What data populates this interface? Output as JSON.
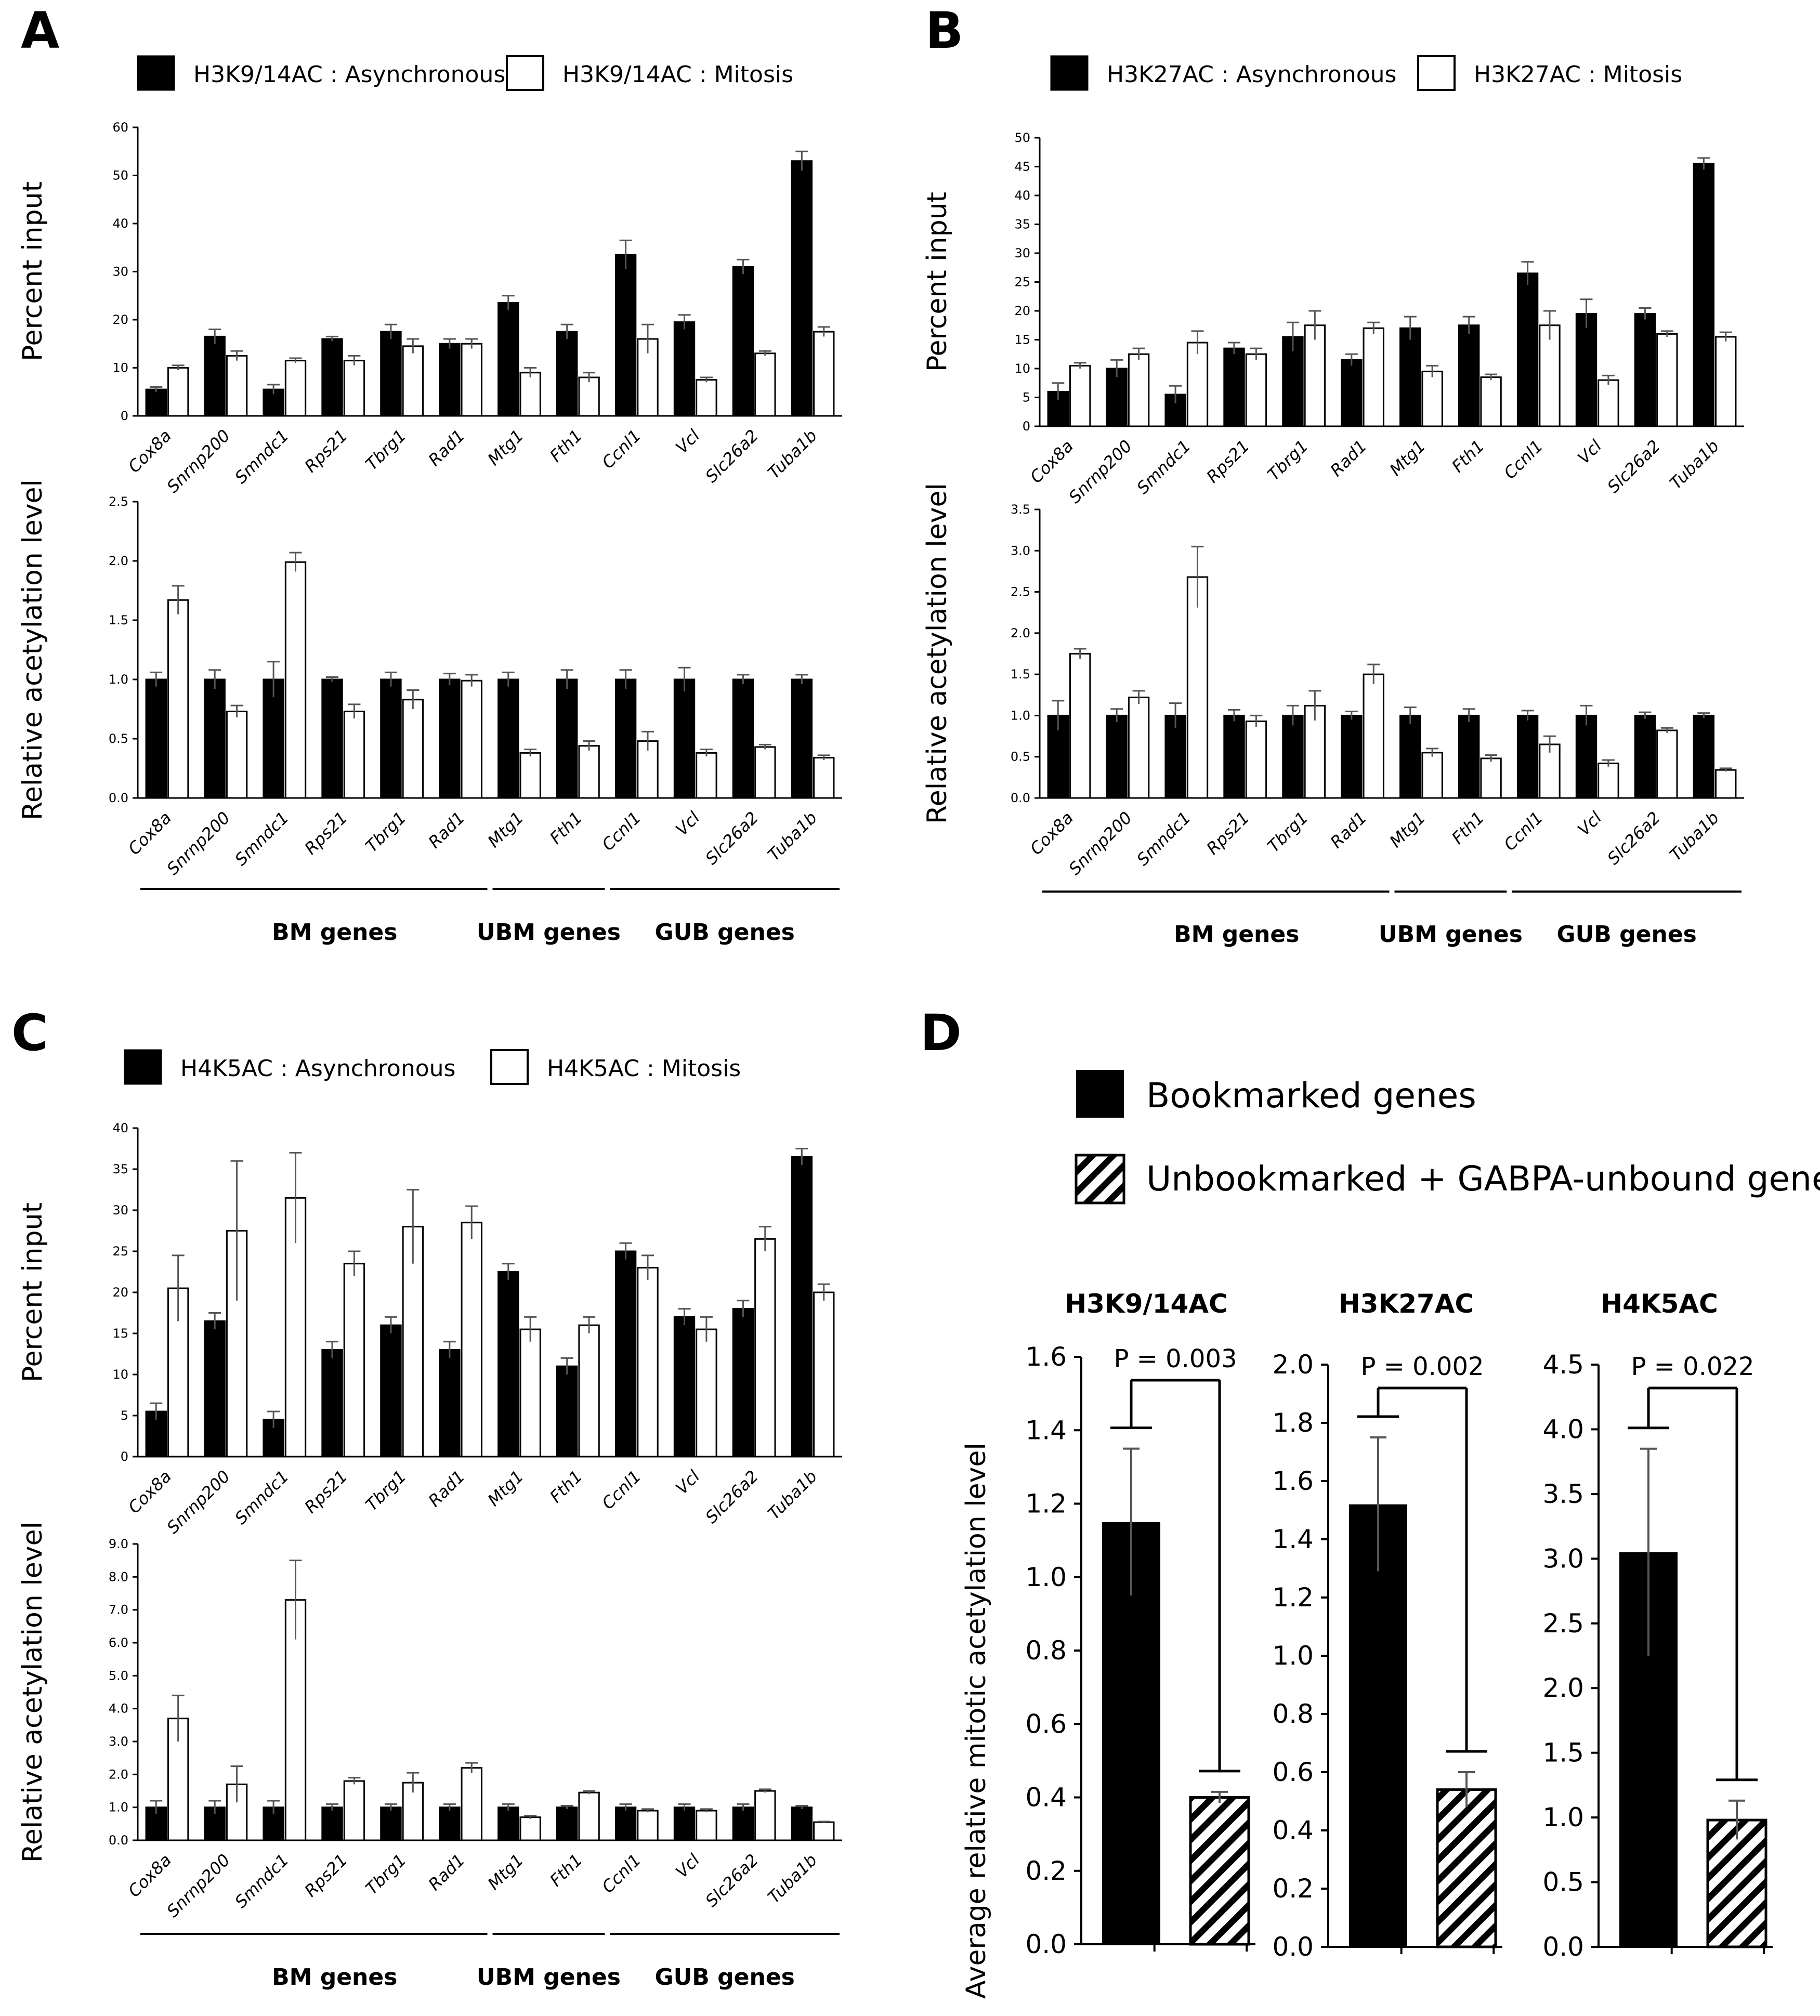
{
  "genes": [
    "Cox8a",
    "Snrnp200",
    "Smndc1",
    "Rps21",
    "Tbrg1",
    "Rad1",
    "Mtg1",
    "Fth1",
    "Ccnl1",
    "Vcl",
    "Slc26a2",
    "Tuba1b"
  ],
  "groups": [
    "BM genes",
    "UBM genes",
    "GUB genes"
  ],
  "panels": [
    {
      "letter": "A",
      "legend": [
        "H3K9/14AC : Asynchronous",
        "H3K9/14AC : Mitosis"
      ],
      "top": {
        "ylabel": "Percent input",
        "ylim": [
          0,
          60
        ],
        "ticks": [
          "0",
          "10",
          "20",
          "30",
          "40",
          "50",
          "60"
        ],
        "async": [
          5.5,
          16.5,
          5.5,
          16,
          17.5,
          15,
          23.5,
          17.5,
          33.5,
          19.5,
          31,
          53
        ],
        "async_err": [
          0.5,
          1.5,
          1,
          0.5,
          1.5,
          1,
          1.5,
          1.5,
          3,
          1.5,
          1.5,
          2
        ],
        "mitosis": [
          10,
          12.5,
          11.5,
          11.5,
          14.5,
          15,
          9,
          8,
          16,
          7.5,
          13,
          17.5
        ],
        "mitosis_err": [
          0.5,
          1,
          0.5,
          1,
          1.5,
          1,
          1,
          1,
          3,
          0.5,
          0.5,
          1
        ]
      },
      "bottom": {
        "ylabel": "Relative acetylation level",
        "ylim": [
          0,
          2.5
        ],
        "ticks": [
          "0.0",
          "0.5",
          "1.0",
          "1.5",
          "2.0",
          "2.5"
        ],
        "async": [
          1,
          1,
          1,
          1,
          1,
          1,
          1,
          1,
          1,
          1,
          1,
          1
        ],
        "async_err": [
          0.06,
          0.08,
          0.15,
          0.02,
          0.06,
          0.05,
          0.06,
          0.08,
          0.08,
          0.1,
          0.04,
          0.04
        ],
        "mitosis": [
          1.67,
          0.73,
          1.99,
          0.73,
          0.83,
          0.99,
          0.38,
          0.44,
          0.48,
          0.38,
          0.43,
          0.34
        ],
        "mitosis_err": [
          0.12,
          0.05,
          0.08,
          0.06,
          0.08,
          0.05,
          0.03,
          0.04,
          0.08,
          0.03,
          0.02,
          0.02
        ]
      }
    },
    {
      "letter": "B",
      "legend": [
        "H3K27AC : Asynchronous",
        "H3K27AC : Mitosis"
      ],
      "top": {
        "ylabel": "Percent input",
        "ylim": [
          0,
          50
        ],
        "ticks": [
          "0",
          "5",
          "10",
          "15",
          "20",
          "25",
          "30",
          "35",
          "40",
          "45",
          "50"
        ],
        "async": [
          6,
          10,
          5.5,
          13.5,
          15.5,
          11.5,
          17,
          17.5,
          26.5,
          19.5,
          19.5,
          45.5
        ],
        "async_err": [
          1.5,
          1.5,
          1.5,
          1,
          2.5,
          1,
          2,
          1.5,
          2,
          2.5,
          1,
          1
        ],
        "mitosis": [
          10.5,
          12.5,
          14.5,
          12.5,
          17.5,
          17,
          9.5,
          8.5,
          17.5,
          8,
          16,
          15.5
        ],
        "mitosis_err": [
          0.5,
          1,
          2,
          1,
          2.5,
          1,
          1,
          0.5,
          2.5,
          0.8,
          0.5,
          0.8
        ]
      },
      "bottom": {
        "ylabel": "Relative acetylation level",
        "ylim": [
          0,
          3.5
        ],
        "ticks": [
          "0.0",
          "0.5",
          "1.0",
          "1.5",
          "2.0",
          "2.5",
          "3.0",
          "3.5"
        ],
        "async": [
          1,
          1,
          1,
          1,
          1,
          1,
          1,
          1,
          1,
          1,
          1,
          1
        ],
        "async_err": [
          0.18,
          0.08,
          0.15,
          0.07,
          0.12,
          0.05,
          0.1,
          0.08,
          0.06,
          0.12,
          0.04,
          0.03
        ],
        "mitosis": [
          1.75,
          1.22,
          2.68,
          0.93,
          1.12,
          1.5,
          0.55,
          0.48,
          0.65,
          0.42,
          0.82,
          0.34
        ],
        "mitosis_err": [
          0.06,
          0.08,
          0.37,
          0.07,
          0.18,
          0.12,
          0.05,
          0.04,
          0.1,
          0.04,
          0.03,
          0.02
        ]
      }
    },
    {
      "letter": "C",
      "legend": [
        "H4K5AC : Asynchronous",
        "H4K5AC : Mitosis"
      ],
      "top": {
        "ylabel": "Percent input",
        "ylim": [
          0,
          40
        ],
        "ticks": [
          "0",
          "5",
          "10",
          "15",
          "20",
          "25",
          "30",
          "35",
          "40"
        ],
        "async": [
          5.5,
          16.5,
          4.5,
          13,
          16,
          13,
          22.5,
          11,
          25,
          17,
          18,
          36.5
        ],
        "async_err": [
          1,
          1,
          1,
          1,
          1,
          1,
          1,
          1,
          1,
          1,
          1,
          1
        ],
        "mitosis": [
          20.5,
          27.5,
          31.5,
          23.5,
          28,
          28.5,
          15.5,
          16,
          23,
          15.5,
          26.5,
          20
        ],
        "mitosis_err": [
          4,
          8.5,
          5.5,
          1.5,
          4.5,
          2,
          1.5,
          1,
          1.5,
          1.5,
          1.5,
          1
        ]
      },
      "bottom": {
        "ylabel": "Relative acetylation level",
        "ylim": [
          0,
          9
        ],
        "ticks": [
          "0.0",
          "1.0",
          "2.0",
          "3.0",
          "4.0",
          "5.0",
          "6.0",
          "7.0",
          "8.0",
          "9.0"
        ],
        "async": [
          1,
          1,
          1,
          1,
          1,
          1,
          1,
          1,
          1,
          1,
          1,
          1
        ],
        "async_err": [
          0.2,
          0.2,
          0.2,
          0.1,
          0.1,
          0.1,
          0.1,
          0.05,
          0.1,
          0.1,
          0.1,
          0.05
        ],
        "mitosis": [
          3.7,
          1.7,
          7.3,
          1.8,
          1.75,
          2.2,
          0.7,
          1.45,
          0.9,
          0.9,
          1.5,
          0.55
        ],
        "mitosis_err": [
          0.7,
          0.55,
          1.2,
          0.1,
          0.3,
          0.15,
          0.05,
          0.05,
          0.05,
          0.05,
          0.05,
          0.02
        ]
      }
    }
  ],
  "panelD": {
    "letter": "D",
    "legend": [
      "Bookmarked genes",
      "Unbookmarked + GABPA-unbound genes"
    ],
    "ylabel": "Average relative  mitotic acetylation level",
    "subplots": [
      {
        "title": "H3K9/14AC",
        "pvalue": "P = 0.003",
        "ylim": [
          0,
          1.6
        ],
        "ticks": [
          "0.0",
          "0.2",
          "0.4",
          "0.6",
          "0.8",
          "1.0",
          "1.2",
          "1.4",
          "1.6"
        ],
        "values": [
          1.15,
          0.4
        ],
        "errors": [
          0.2,
          0.015
        ]
      },
      {
        "title": "H3K27AC",
        "pvalue": "P = 0.002",
        "ylim": [
          0,
          2.0
        ],
        "ticks": [
          "0.0",
          "0.2",
          "0.4",
          "0.6",
          "0.8",
          "1.0",
          "1.2",
          "1.4",
          "1.6",
          "1.8",
          "2.0"
        ],
        "values": [
          1.52,
          0.54
        ],
        "errors": [
          0.23,
          0.06
        ]
      },
      {
        "title": "H4K5AC",
        "pvalue": "P = 0.022",
        "ylim": [
          0,
          4.5
        ],
        "ticks": [
          "0.0",
          "0.5",
          "1.0",
          "1.5",
          "2.0",
          "2.5",
          "3.0",
          "3.5",
          "4.0",
          "4.5"
        ],
        "values": [
          3.05,
          0.98
        ],
        "errors": [
          0.8,
          0.15
        ]
      }
    ]
  },
  "chart_data": [
    {
      "type": "bar",
      "title": "A top: H3K9/14AC percent input",
      "categories": [
        "Cox8a",
        "Snrnp200",
        "Smndc1",
        "Rps21",
        "Tbrg1",
        "Rad1",
        "Mtg1",
        "Fth1",
        "Ccnl1",
        "Vcl",
        "Slc26a2",
        "Tuba1b"
      ],
      "series": [
        {
          "name": "H3K9/14AC : Asynchronous",
          "values": [
            5.5,
            16.5,
            5.5,
            16,
            17.5,
            15,
            23.5,
            17.5,
            33.5,
            19.5,
            31,
            53
          ]
        },
        {
          "name": "H3K9/14AC : Mitosis",
          "values": [
            10,
            12.5,
            11.5,
            11.5,
            14.5,
            15,
            9,
            8,
            16,
            7.5,
            13,
            17.5
          ]
        }
      ],
      "ylabel": "Percent input",
      "ylim": [
        0,
        60
      ]
    },
    {
      "type": "bar",
      "title": "A bottom: H3K9/14AC relative acetylation",
      "categories": [
        "Cox8a",
        "Snrnp200",
        "Smndc1",
        "Rps21",
        "Tbrg1",
        "Rad1",
        "Mtg1",
        "Fth1",
        "Ccnl1",
        "Vcl",
        "Slc26a2",
        "Tuba1b"
      ],
      "series": [
        {
          "name": "Asynchronous",
          "values": [
            1,
            1,
            1,
            1,
            1,
            1,
            1,
            1,
            1,
            1,
            1,
            1
          ]
        },
        {
          "name": "Mitosis",
          "values": [
            1.67,
            0.73,
            1.99,
            0.73,
            0.83,
            0.99,
            0.38,
            0.44,
            0.48,
            0.38,
            0.43,
            0.34
          ]
        }
      ],
      "ylabel": "Relative acetylation level",
      "ylim": [
        0,
        2.5
      ]
    },
    {
      "type": "bar",
      "title": "B top: H3K27AC percent input",
      "categories": [
        "Cox8a",
        "Snrnp200",
        "Smndc1",
        "Rps21",
        "Tbrg1",
        "Rad1",
        "Mtg1",
        "Fth1",
        "Ccnl1",
        "Vcl",
        "Slc26a2",
        "Tuba1b"
      ],
      "series": [
        {
          "name": "H3K27AC : Asynchronous",
          "values": [
            6,
            10,
            5.5,
            13.5,
            15.5,
            11.5,
            17,
            17.5,
            26.5,
            19.5,
            19.5,
            45.5
          ]
        },
        {
          "name": "H3K27AC : Mitosis",
          "values": [
            10.5,
            12.5,
            14.5,
            12.5,
            17.5,
            17,
            9.5,
            8.5,
            17.5,
            8,
            16,
            15.5
          ]
        }
      ],
      "ylabel": "Percent input",
      "ylim": [
        0,
        50
      ]
    },
    {
      "type": "bar",
      "title": "B bottom: H3K27AC relative acetylation",
      "categories": [
        "Cox8a",
        "Snrnp200",
        "Smndc1",
        "Rps21",
        "Tbrg1",
        "Rad1",
        "Mtg1",
        "Fth1",
        "Ccnl1",
        "Vcl",
        "Slc26a2",
        "Tuba1b"
      ],
      "series": [
        {
          "name": "Asynchronous",
          "values": [
            1,
            1,
            1,
            1,
            1,
            1,
            1,
            1,
            1,
            1,
            1,
            1
          ]
        },
        {
          "name": "Mitosis",
          "values": [
            1.75,
            1.22,
            2.68,
            0.93,
            1.12,
            1.5,
            0.55,
            0.48,
            0.65,
            0.42,
            0.82,
            0.34
          ]
        }
      ],
      "ylabel": "Relative acetylation level",
      "ylim": [
        0,
        3.5
      ]
    },
    {
      "type": "bar",
      "title": "C top: H4K5AC percent input",
      "categories": [
        "Cox8a",
        "Snrnp200",
        "Smndc1",
        "Rps21",
        "Tbrg1",
        "Rad1",
        "Mtg1",
        "Fth1",
        "Ccnl1",
        "Vcl",
        "Slc26a2",
        "Tuba1b"
      ],
      "series": [
        {
          "name": "H4K5AC : Asynchronous",
          "values": [
            5.5,
            16.5,
            4.5,
            13,
            16,
            13,
            22.5,
            11,
            25,
            17,
            18,
            36.5
          ]
        },
        {
          "name": "H4K5AC : Mitosis",
          "values": [
            20.5,
            27.5,
            31.5,
            23.5,
            28,
            28.5,
            15.5,
            16,
            23,
            15.5,
            26.5,
            20
          ]
        }
      ],
      "ylabel": "Percent input",
      "ylim": [
        0,
        40
      ]
    },
    {
      "type": "bar",
      "title": "C bottom: H4K5AC relative acetylation",
      "categories": [
        "Cox8a",
        "Snrnp200",
        "Smndc1",
        "Rps21",
        "Tbrg1",
        "Rad1",
        "Mtg1",
        "Fth1",
        "Ccnl1",
        "Vcl",
        "Slc26a2",
        "Tuba1b"
      ],
      "series": [
        {
          "name": "Asynchronous",
          "values": [
            1,
            1,
            1,
            1,
            1,
            1,
            1,
            1,
            1,
            1,
            1,
            1
          ]
        },
        {
          "name": "Mitosis",
          "values": [
            3.7,
            1.7,
            7.3,
            1.8,
            1.75,
            2.2,
            0.7,
            1.45,
            0.9,
            0.9,
            1.5,
            0.55
          ]
        }
      ],
      "ylabel": "Relative acetylation level",
      "ylim": [
        0,
        9
      ]
    },
    {
      "type": "bar",
      "title": "D: H3K9/14AC",
      "categories": [
        "Bookmarked genes",
        "Unbookmarked + GABPA-unbound genes"
      ],
      "values": [
        1.15,
        0.4
      ],
      "ylabel": "Average relative  mitotic acetylation level",
      "ylim": [
        0,
        1.6
      ],
      "annotation": "P = 0.003"
    },
    {
      "type": "bar",
      "title": "D: H3K27AC",
      "categories": [
        "Bookmarked genes",
        "Unbookmarked + GABPA-unbound genes"
      ],
      "values": [
        1.52,
        0.54
      ],
      "ylim": [
        0,
        2.0
      ],
      "annotation": "P = 0.002"
    },
    {
      "type": "bar",
      "title": "D: H4K5AC",
      "categories": [
        "Bookmarked genes",
        "Unbookmarked + GABPA-unbound genes"
      ],
      "values": [
        3.05,
        0.98
      ],
      "ylim": [
        0,
        4.5
      ],
      "annotation": "P = 0.022"
    }
  ]
}
